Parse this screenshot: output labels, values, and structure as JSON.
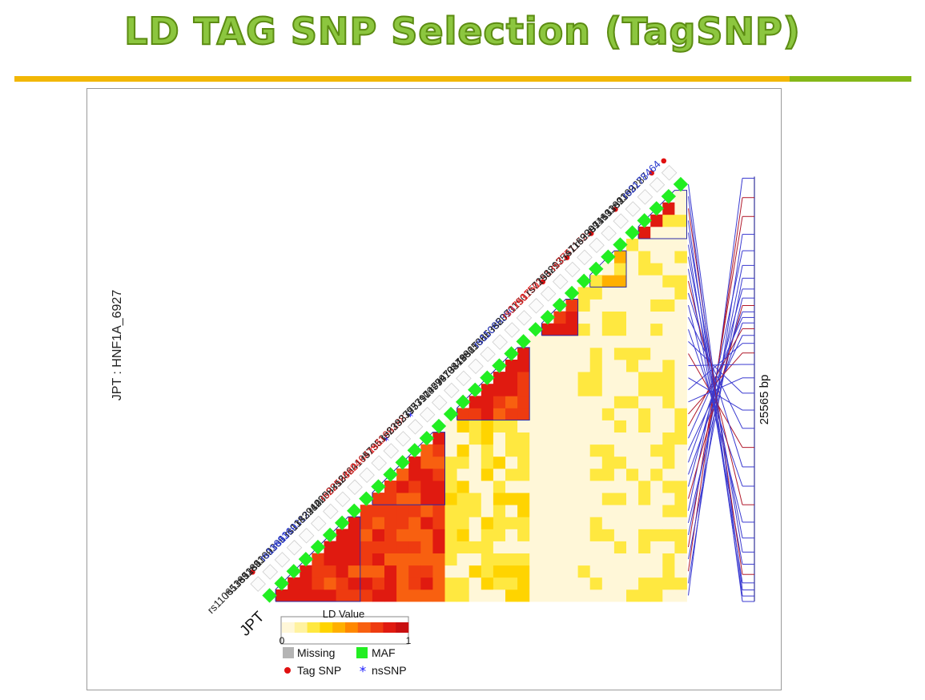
{
  "title": "LD TAG SNP Selection (TagSNP)",
  "colors": {
    "title_fill": "#8cc63f",
    "rule_main": "#f2b705",
    "rule_end": "#84b818",
    "maf": "#22ee22",
    "tag_dot": "#e01010",
    "ns_star": "#1a1aff",
    "name_black": "#222222",
    "name_red": "#e02020",
    "name_blue": "#2233cc"
  },
  "figure": {
    "population_axis_label": "JPT : HNF1A_6927",
    "population_label": "JPT",
    "bp_label": "25565 bp",
    "snps": [
      {
        "name": "rs11065385",
        "color": "black",
        "tag": true,
        "ns": false
      },
      {
        "name": "rs1169286",
        "color": "black",
        "tag": false,
        "ns": false
      },
      {
        "name": "rs1169300",
        "color": "black",
        "tag": false,
        "ns": false
      },
      {
        "name": "rs1169306",
        "color": "black",
        "tag": false,
        "ns": false
      },
      {
        "name": "rs1169310",
        "color": "blue",
        "tag": false,
        "ns": false
      },
      {
        "name": "rs1169312",
        "color": "blue",
        "tag": false,
        "ns": false
      },
      {
        "name": "rs1183910",
        "color": "black",
        "tag": false,
        "ns": false
      },
      {
        "name": "rs2244608",
        "color": "black",
        "tag": false,
        "ns": false
      },
      {
        "name": "rs2259816",
        "color": "black",
        "tag": false,
        "ns": false
      },
      {
        "name": "rs2259820",
        "color": "red",
        "tag": false,
        "ns": false
      },
      {
        "name": "rs2464195",
        "color": "black",
        "tag": false,
        "ns": false
      },
      {
        "name": "rs2464196",
        "color": "red",
        "tag": false,
        "ns": true
      },
      {
        "name": "rs735396",
        "color": "black",
        "tag": false,
        "ns": false
      },
      {
        "name": "rs1169288",
        "color": "red",
        "tag": false,
        "ns": true
      },
      {
        "name": "rs2393775",
        "color": "black",
        "tag": false,
        "ns": false
      },
      {
        "name": "rs2393791",
        "color": "black",
        "tag": false,
        "ns": false
      },
      {
        "name": "rs7310409",
        "color": "black",
        "tag": false,
        "ns": false
      },
      {
        "name": "rs7979473",
        "color": "black",
        "tag": false,
        "ns": false
      },
      {
        "name": "rs7979478",
        "color": "black",
        "tag": false,
        "ns": false
      },
      {
        "name": "rs10849827",
        "color": "black",
        "tag": false,
        "ns": false
      },
      {
        "name": "rs11065386",
        "color": "black",
        "tag": false,
        "ns": false
      },
      {
        "name": "rs11065388",
        "color": "black",
        "tag": false,
        "ns": false
      },
      {
        "name": "rs11065390",
        "color": "blue",
        "tag": false,
        "ns": false
      },
      {
        "name": "rs2071190",
        "color": "black",
        "tag": false,
        "ns": false
      },
      {
        "name": "rs3751150",
        "color": "red",
        "tag": true,
        "ns": false
      },
      {
        "name": "rs3751151",
        "color": "red",
        "tag": false,
        "ns": false
      },
      {
        "name": "rs7296897",
        "color": "black",
        "tag": true,
        "ns": false
      },
      {
        "name": "rs3213547",
        "color": "black",
        "tag": false,
        "ns": false
      },
      {
        "name": "rs3751152",
        "color": "red",
        "tag": true,
        "ns": false
      },
      {
        "name": "rs1169307",
        "color": "black",
        "tag": false,
        "ns": false
      },
      {
        "name": "rs3999413",
        "color": "black",
        "tag": true,
        "ns": false
      },
      {
        "name": "rs1169302",
        "color": "black",
        "tag": false,
        "ns": false
      },
      {
        "name": "rs1169303",
        "color": "black",
        "tag": false,
        "ns": false
      },
      {
        "name": "rs1169287",
        "color": "black",
        "tag": true,
        "ns": false
      },
      {
        "name": "rs2178464",
        "color": "blue",
        "tag": true,
        "ns": false
      }
    ],
    "ld_blocks": [
      [
        0,
        7
      ],
      [
        8,
        14
      ],
      [
        15,
        21
      ],
      [
        22,
        25
      ],
      [
        26,
        29
      ],
      [
        30,
        34
      ]
    ],
    "legend": {
      "title": "LD Value",
      "scale_min": "0",
      "scale_max": "1",
      "scale_colors": [
        "#fff7d8",
        "#fff2a0",
        "#ffe840",
        "#ffd400",
        "#ffb000",
        "#ff8800",
        "#f86010",
        "#ee3b10",
        "#e01a10",
        "#c80f10"
      ],
      "missing": "Missing",
      "maf": "MAF",
      "tag_snp": "Tag SNP",
      "ns_snp": "nsSNP",
      "missing_color": "#b4b4b4"
    }
  }
}
